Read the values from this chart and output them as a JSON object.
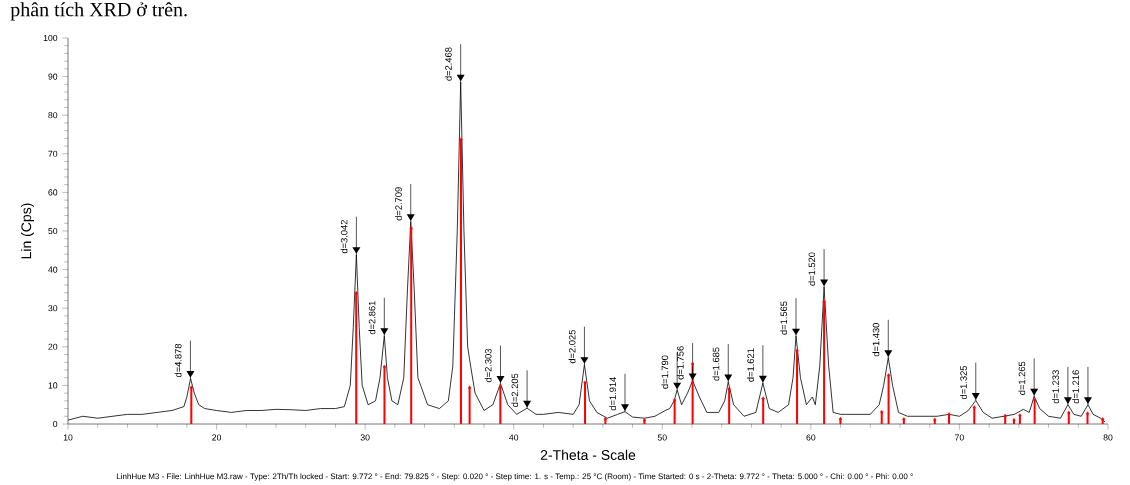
{
  "chart_data": {
    "type": "line",
    "xlabel": "2-Theta - Scale",
    "ylabel": "Lin (Cps)",
    "xlim": [
      10,
      80
    ],
    "ylim": [
      0,
      100
    ],
    "xticks": [
      10,
      20,
      30,
      40,
      50,
      60,
      70,
      80
    ],
    "yticks": [
      0,
      10,
      20,
      30,
      40,
      50,
      60,
      70,
      80,
      90,
      100
    ],
    "grid": false,
    "series": [
      {
        "color": "#000000",
        "marker": "none",
        "x": [
          10,
          11,
          12,
          13,
          14,
          15,
          16,
          17,
          17.8,
          18.0,
          18.25,
          18.5,
          18.8,
          19.2,
          20,
          21,
          22,
          23,
          24,
          25,
          26,
          27,
          28,
          28.6,
          29.0,
          29.2,
          29.41,
          29.6,
          29.8,
          30.2,
          30.7,
          31.0,
          31.29,
          31.5,
          31.8,
          32.2,
          32.6,
          32.85,
          33.07,
          33.3,
          33.55,
          34.2,
          35,
          35.6,
          35.9,
          36.2,
          36.43,
          36.65,
          36.9,
          37.1,
          37.4,
          38,
          38.6,
          39.11,
          39.6,
          40.2,
          40.9,
          41.5,
          42,
          43,
          44,
          44.4,
          44.76,
          45.1,
          45.6,
          46.3,
          47,
          47.49,
          48,
          48.8,
          49.5,
          50.2,
          50.5,
          50.8,
          51.0,
          51.3,
          51.7,
          52.04,
          52.5,
          53,
          53.8,
          54.2,
          54.44,
          54.8,
          55.5,
          56.3,
          56.77,
          57.2,
          57.8,
          58.5,
          58.8,
          59.0,
          59.3,
          59.7,
          60.1,
          60.3,
          60.6,
          60.89,
          61.2,
          61.5,
          62,
          63,
          64,
          64.6,
          64.9,
          65.21,
          65.5,
          65.9,
          66.5,
          67.5,
          68.5,
          69.3,
          70,
          70.6,
          71.1,
          71.6,
          72.2,
          73,
          73.7,
          74.3,
          74.7,
          75.03,
          75.4,
          76,
          76.8,
          77.3,
          77.7,
          78.2,
          78.65,
          79,
          79.5,
          79.8
        ],
        "values": [
          1.0,
          2.0,
          1.5,
          2.0,
          2.5,
          2.5,
          3.0,
          3.5,
          4.5,
          7,
          11.8,
          8,
          5,
          4,
          3.5,
          3,
          3.5,
          3.5,
          3.8,
          3.7,
          3.5,
          4,
          4,
          4.5,
          10,
          25,
          43.9,
          25,
          10,
          5,
          6,
          12,
          22.9,
          12,
          6,
          5,
          12,
          35,
          52.4,
          35,
          12,
          5,
          4,
          6,
          15,
          50,
          88.6,
          50,
          20,
          15,
          8,
          3.5,
          5,
          10.5,
          5,
          2.5,
          4.1,
          2.5,
          2.5,
          3,
          2.5,
          5,
          15.4,
          6,
          3,
          1.5,
          2.5,
          3.2,
          1.8,
          1.5,
          2,
          3.5,
          4,
          6,
          8.8,
          5,
          8,
          11.2,
          7,
          3,
          3,
          6,
          10.9,
          5,
          2,
          3,
          10.6,
          4,
          3,
          5,
          12,
          22.8,
          12,
          5,
          7,
          5,
          15,
          35.5,
          15,
          3,
          2.5,
          2.5,
          2.5,
          5,
          10,
          17.2,
          10,
          3,
          2,
          2,
          2,
          2.5,
          2,
          3.5,
          6.1,
          3,
          1.5,
          2,
          2.5,
          3.8,
          3,
          7.2,
          4,
          2,
          1.5,
          5,
          2.5,
          2,
          5,
          2.5,
          1.5,
          0.5
        ]
      },
      {
        "type": "lollipop",
        "color": "#ff0000",
        "marker": "diamond",
        "x": [
          18.3,
          29.4,
          31.3,
          33.1,
          36.45,
          37.03,
          39.1,
          44.8,
          46.17,
          48.8,
          50.83,
          52.04,
          54.5,
          56.79,
          59.07,
          60.89,
          61.99,
          64.77,
          65.23,
          66.26,
          68.34,
          69.3,
          71.0,
          73.08,
          73.67,
          74.07,
          75.06,
          77.36,
          78.62,
          79.64
        ],
        "values": [
          9.4,
          33.9,
          14.8,
          50.7,
          73.7,
          9.4,
          9.5,
          10.7,
          1.3,
          1.0,
          6.2,
          15.6,
          9.1,
          6.6,
          19.0,
          31.7,
          1.3,
          3.1,
          12.6,
          1.2,
          1.1,
          2.5,
          4.3,
          2.1,
          1.0,
          2.2,
          6.2,
          2.9,
          2.7,
          1.2
        ]
      }
    ],
    "annotations": [
      "phân tích XRD ở trên.",
      {
        "text": "d=4.878",
        "x": 18.24,
        "y": 11.8
      },
      {
        "text": "d=3.042",
        "x": 29.41,
        "y": 43.9
      },
      {
        "text": "d=2.861",
        "x": 31.29,
        "y": 22.9
      },
      {
        "text": "d=2.709",
        "x": 33.07,
        "y": 52.4
      },
      {
        "text": "d=2.468",
        "x": 36.43,
        "y": 88.6
      },
      {
        "text": "d=2.303",
        "x": 39.11,
        "y": 10.5
      },
      {
        "text": "d=2.205",
        "x": 40.9,
        "y": 4.1
      },
      {
        "text": "d=2.025",
        "x": 44.76,
        "y": 15.4
      },
      {
        "text": "d=1.914",
        "x": 47.49,
        "y": 3.2
      },
      {
        "text": "d=1.790",
        "x": 51.0,
        "y": 8.8
      },
      {
        "text": "d=1.756",
        "x": 52.04,
        "y": 11.2
      },
      {
        "text": "d=1.685",
        "x": 54.44,
        "y": 10.9
      },
      {
        "text": "d=1.621",
        "x": 56.77,
        "y": 10.6
      },
      {
        "text": "d=1.565",
        "x": 59.0,
        "y": 22.8
      },
      {
        "text": "d=1.520",
        "x": 60.89,
        "y": 35.5
      },
      {
        "text": "d=1.430",
        "x": 65.21,
        "y": 17.2
      },
      {
        "text": "d=1.325",
        "x": 71.1,
        "y": 6.1
      },
      {
        "text": "d=1.265",
        "x": 75.03,
        "y": 7.2
      },
      {
        "text": "d=1.233",
        "x": 77.3,
        "y": 5.0
      },
      {
        "text": "d=1.216",
        "x": 78.65,
        "y": 5.0
      },
      "LinhHue M3 - File: LinhHue M3.raw - Type: 2Th/Th locked - Start: 9.772 ° - End: 79.825 ° - Step: 0.020 ° - Step time: 1. s - Temp.: 25 °C (Room) - Time Started: 0 s - 2-Theta: 9.772 ° - Theta: 5.000 ° - Chi: 0.00 ° - Phi: 0.00 °"
    ]
  }
}
